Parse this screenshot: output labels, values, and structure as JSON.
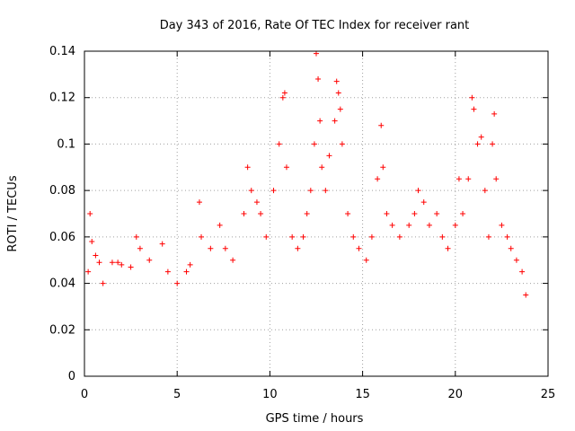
{
  "chart_data": {
    "type": "scatter",
    "title": "Day 343 of 2016, Rate Of TEC Index for receiver rant",
    "xlabel": "GPS time / hours",
    "ylabel": "ROTI / TECUs",
    "xlim": [
      0,
      24
    ],
    "ylim": [
      0,
      0.14
    ],
    "xticks": [
      0,
      5,
      10,
      15,
      20,
      25
    ],
    "xtick_labels": [
      "0",
      "5",
      "10",
      "15",
      "20",
      "25"
    ],
    "yticks": [
      0,
      0.02,
      0.04,
      0.06,
      0.08,
      0.1,
      0.12,
      0.14
    ],
    "ytick_labels": [
      "0",
      "0.02",
      "0.04",
      "0.06",
      "0.08",
      "0.1",
      "0.12",
      "0.14"
    ],
    "grid": true,
    "marker": "plus",
    "color": "#ff0000",
    "series": [
      {
        "points": [
          [
            0.2,
            0.045
          ],
          [
            0.3,
            0.07
          ],
          [
            0.4,
            0.058
          ],
          [
            0.6,
            0.052
          ],
          [
            0.8,
            0.049
          ],
          [
            1.0,
            0.04
          ],
          [
            1.5,
            0.049
          ],
          [
            1.8,
            0.049
          ],
          [
            2.0,
            0.048
          ],
          [
            2.5,
            0.047
          ],
          [
            2.8,
            0.06
          ],
          [
            3.0,
            0.055
          ],
          [
            3.5,
            0.05
          ],
          [
            4.2,
            0.057
          ],
          [
            4.5,
            0.045
          ],
          [
            5.0,
            0.04
          ],
          [
            5.5,
            0.045
          ],
          [
            5.7,
            0.048
          ],
          [
            6.2,
            0.075
          ],
          [
            6.3,
            0.06
          ],
          [
            6.8,
            0.055
          ],
          [
            7.3,
            0.065
          ],
          [
            7.6,
            0.055
          ],
          [
            8.0,
            0.05
          ],
          [
            8.6,
            0.07
          ],
          [
            8.8,
            0.09
          ],
          [
            9.0,
            0.08
          ],
          [
            9.3,
            0.075
          ],
          [
            9.5,
            0.07
          ],
          [
            9.8,
            0.06
          ],
          [
            10.2,
            0.08
          ],
          [
            10.5,
            0.1
          ],
          [
            10.7,
            0.12
          ],
          [
            10.8,
            0.122
          ],
          [
            10.9,
            0.09
          ],
          [
            11.2,
            0.06
          ],
          [
            11.5,
            0.055
          ],
          [
            11.8,
            0.06
          ],
          [
            12.0,
            0.07
          ],
          [
            12.2,
            0.08
          ],
          [
            12.4,
            0.1
          ],
          [
            12.5,
            0.139
          ],
          [
            12.6,
            0.128
          ],
          [
            12.7,
            0.11
          ],
          [
            12.8,
            0.09
          ],
          [
            13.0,
            0.08
          ],
          [
            13.2,
            0.095
          ],
          [
            13.5,
            0.11
          ],
          [
            13.6,
            0.127
          ],
          [
            13.7,
            0.122
          ],
          [
            13.8,
            0.115
          ],
          [
            13.9,
            0.1
          ],
          [
            14.2,
            0.07
          ],
          [
            14.5,
            0.06
          ],
          [
            14.8,
            0.055
          ],
          [
            15.2,
            0.05
          ],
          [
            15.5,
            0.06
          ],
          [
            15.8,
            0.085
          ],
          [
            16.0,
            0.108
          ],
          [
            16.1,
            0.09
          ],
          [
            16.3,
            0.07
          ],
          [
            16.6,
            0.065
          ],
          [
            17.0,
            0.06
          ],
          [
            17.5,
            0.065
          ],
          [
            17.8,
            0.07
          ],
          [
            18.0,
            0.08
          ],
          [
            18.3,
            0.075
          ],
          [
            18.6,
            0.065
          ],
          [
            19.0,
            0.07
          ],
          [
            19.3,
            0.06
          ],
          [
            19.6,
            0.055
          ],
          [
            20.0,
            0.065
          ],
          [
            20.2,
            0.085
          ],
          [
            20.4,
            0.07
          ],
          [
            20.7,
            0.085
          ],
          [
            20.9,
            0.12
          ],
          [
            21.0,
            0.115
          ],
          [
            21.2,
            0.1
          ],
          [
            21.4,
            0.103
          ],
          [
            21.6,
            0.08
          ],
          [
            21.8,
            0.06
          ],
          [
            22.0,
            0.1
          ],
          [
            22.1,
            0.113
          ],
          [
            22.2,
            0.085
          ],
          [
            22.5,
            0.065
          ],
          [
            22.8,
            0.06
          ],
          [
            23.0,
            0.055
          ],
          [
            23.3,
            0.05
          ],
          [
            23.6,
            0.045
          ],
          [
            23.8,
            0.035
          ]
        ]
      }
    ]
  }
}
